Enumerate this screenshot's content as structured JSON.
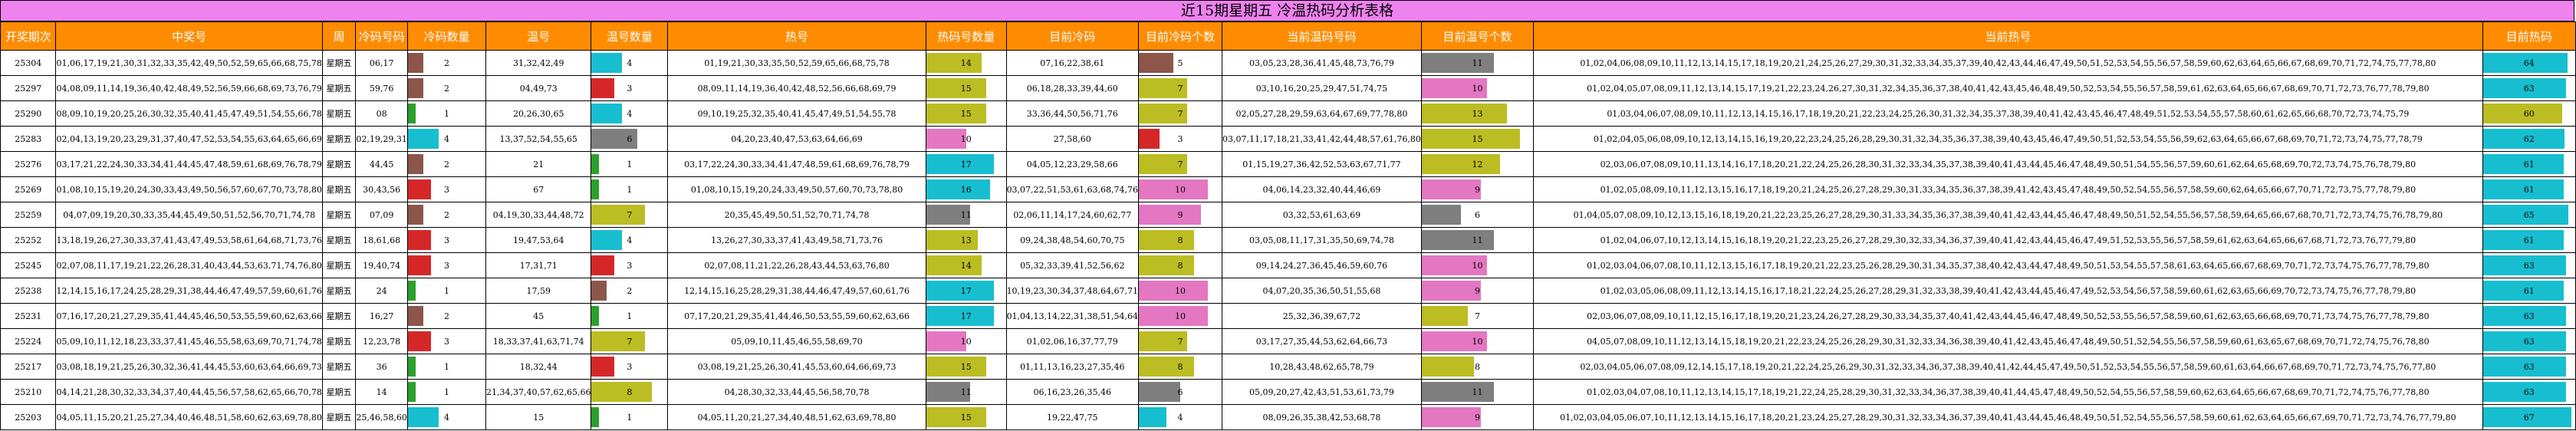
{
  "title": "近15期星期五 冷温热码分析表格",
  "headers": [
    "开奖期次",
    "中奖号",
    "周",
    "冷码号码",
    "冷码数量",
    "温号",
    "温号数量",
    "热号",
    "热码号数量",
    "目前冷码",
    "目前冷码个数",
    "当前温码号码",
    "目前温号个数",
    "当前热号",
    "目前热码"
  ],
  "rows": [
    {
      "qi": "25304",
      "zhong": "01,06,17,19,21,30,31,32,33,35,42,49,50,52,59,65,66,68,75,78",
      "zhou": "星期五",
      "leng": "06,17",
      "lengN": 2,
      "wen": "31,32,42,49",
      "wenN": 4,
      "re": "01,19,21,30,33,35,50,52,59,65,66,68,75,78",
      "reN": 14,
      "mqLeng": "07,16,22,38,61",
      "mqLengN": 5,
      "dqWen": "03,05,23,28,36,41,45,48,73,76,79",
      "mqWenN": 11,
      "dqRe": "01,02,04,06,08,09,10,11,12,13,14,15,17,18,19,20,21,24,25,26,27,29,30,31,32,33,34,35,37,39,40,42,43,44,46,47,49,50,51,52,53,54,55,56,57,58,59,60,62,63,64,65,66,67,68,69,70,71,72,74,75,77,78,80",
      "mqReN": 64
    },
    {
      "qi": "25297",
      "zhong": "04,08,09,11,14,19,36,40,42,48,49,52,56,59,66,68,69,73,76,79",
      "zhou": "星期五",
      "leng": "59,76",
      "lengN": 2,
      "wen": "04,49,73",
      "wenN": 3,
      "re": "08,09,11,14,19,36,40,42,48,52,56,66,68,69,79",
      "reN": 15,
      "mqLeng": "06,18,28,33,39,44,60",
      "mqLengN": 7,
      "dqWen": "03,10,16,20,25,29,47,51,74,75",
      "mqWenN": 10,
      "dqRe": "01,02,04,05,07,08,09,11,12,13,14,15,17,19,21,22,23,24,26,27,30,31,32,34,35,36,37,38,40,41,42,43,45,46,48,49,50,52,53,54,55,56,57,58,59,61,62,63,64,65,66,67,68,69,70,71,72,73,76,77,78,79,80",
      "mqReN": 63
    },
    {
      "qi": "25290",
      "zhong": "08,09,10,19,20,25,26,30,32,35,40,41,45,47,49,51,54,55,66,78",
      "zhou": "星期五",
      "leng": "08",
      "lengN": 1,
      "wen": "20,26,30,65",
      "wenN": 4,
      "re": "09,10,19,25,32,35,40,41,45,47,49,51,54,55,78",
      "reN": 15,
      "mqLeng": "33,36,44,50,56,71,76",
      "mqLengN": 7,
      "dqWen": "02,05,27,28,29,59,63,64,67,69,77,78,80",
      "mqWenN": 13,
      "dqRe": "01,03,04,06,07,08,09,10,11,12,13,14,15,16,17,18,19,20,21,22,23,24,25,26,30,31,32,34,35,37,38,39,40,41,42,43,45,46,47,48,49,51,52,53,54,55,57,58,60,61,62,65,66,68,70,72,73,74,75,79",
      "mqReN": 60
    },
    {
      "qi": "25283",
      "zhong": "02,04,13,19,20,23,29,31,37,40,47,52,53,54,55,63,64,65,66,69",
      "zhou": "星期五",
      "leng": "02,19,29,31",
      "lengN": 4,
      "wen": "13,37,52,54,55,65",
      "wenN": 6,
      "re": "04,20,23,40,47,53,63,64,66,69",
      "reN": 10,
      "mqLeng": "27,58,60",
      "mqLengN": 3,
      "dqWen": "03,07,11,17,18,21,33,41,42,44,48,57,61,76,80",
      "mqWenN": 15,
      "dqRe": "01,02,04,05,06,08,09,10,12,13,14,15,16,19,20,22,23,24,25,26,28,29,30,31,32,34,35,36,37,38,39,40,43,45,46,47,49,50,51,52,53,54,55,56,59,62,63,64,65,66,67,68,69,70,71,72,73,74,75,77,78,79",
      "mqReN": 62
    },
    {
      "qi": "25276",
      "zhong": "03,17,21,22,24,30,33,34,41,44,45,47,48,59,61,68,69,76,78,79",
      "zhou": "星期五",
      "leng": "44,45",
      "lengN": 2,
      "wen": "21",
      "wenN": 1,
      "re": "03,17,22,24,30,33,34,41,47,48,59,61,68,69,76,78,79",
      "reN": 17,
      "mqLeng": "04,05,12,23,29,58,66",
      "mqLengN": 7,
      "dqWen": "01,15,19,27,36,42,52,53,63,67,71,77",
      "mqWenN": 12,
      "dqRe": "02,03,06,07,08,09,10,11,13,14,16,17,18,20,21,22,24,25,26,28,30,31,32,33,34,35,37,38,39,40,41,43,44,45,46,47,48,49,50,51,54,55,56,57,59,60,61,62,64,65,68,69,70,72,73,74,75,76,78,79,80",
      "mqReN": 61
    },
    {
      "qi": "25269",
      "zhong": "01,08,10,15,19,20,24,30,33,43,49,50,56,57,60,67,70,73,78,80",
      "zhou": "星期五",
      "leng": "30,43,56",
      "lengN": 3,
      "wen": "67",
      "wenN": 1,
      "re": "01,08,10,15,19,20,24,33,49,50,57,60,70,73,78,80",
      "reN": 16,
      "mqLeng": "03,07,22,51,53,61,63,68,74,76",
      "mqLengN": 10,
      "dqWen": "04,06,14,23,32,40,44,46,69",
      "mqWenN": 9,
      "dqRe": "01,02,05,08,09,10,11,12,13,15,16,17,18,19,20,21,24,25,26,27,28,29,30,31,33,34,35,36,37,38,39,41,42,43,45,47,48,49,50,52,54,55,56,57,58,59,60,62,64,65,66,67,70,71,72,73,75,77,78,79,80",
      "mqReN": 61
    },
    {
      "qi": "25259",
      "zhong": "04,07,09,19,20,30,33,35,44,45,49,50,51,52,56,70,71,74,78",
      "zhou": "星期五",
      "leng": "07,09",
      "lengN": 2,
      "wen": "04,19,30,33,44,48,72",
      "wenN": 7,
      "re": "20,35,45,49,50,51,52,70,71,74,78",
      "reN": 11,
      "mqLeng": "02,06,11,14,17,24,60,62,77",
      "mqLengN": 9,
      "dqWen": "03,32,53,61,63,69",
      "mqWenN": 6,
      "dqRe": "01,04,05,07,08,09,10,12,13,15,16,18,19,20,21,22,23,25,26,27,28,29,30,31,33,34,35,36,37,38,39,40,41,42,43,44,45,46,47,48,49,50,51,52,54,55,56,57,58,59,64,65,66,67,68,70,71,72,73,74,75,76,78,79,80",
      "mqReN": 65
    },
    {
      "qi": "25252",
      "zhong": "13,18,19,26,27,30,33,37,41,43,47,49,53,58,61,64,68,71,73,76",
      "zhou": "星期五",
      "leng": "18,61,68",
      "lengN": 3,
      "wen": "19,47,53,64",
      "wenN": 4,
      "re": "13,26,27,30,33,37,41,43,49,58,71,73,76",
      "reN": 13,
      "mqLeng": "09,24,38,48,54,60,70,75",
      "mqLengN": 8,
      "dqWen": "03,05,08,11,17,31,35,50,69,74,78",
      "mqWenN": 11,
      "dqRe": "01,02,04,06,07,10,12,13,14,15,16,18,19,20,21,22,23,25,26,27,28,29,30,32,33,34,36,37,39,40,41,42,43,44,45,46,47,49,51,52,53,55,56,57,58,59,61,62,63,64,65,66,67,68,71,72,73,76,77,79,80",
      "mqReN": 61
    },
    {
      "qi": "25245",
      "zhong": "02,07,08,11,17,19,21,22,26,28,31,40,43,44,53,63,71,74,76,80",
      "zhou": "星期五",
      "leng": "19,40,74",
      "lengN": 3,
      "wen": "17,31,71",
      "wenN": 3,
      "re": "02,07,08,11,21,22,26,28,43,44,53,63,76,80",
      "reN": 14,
      "mqLeng": "05,32,33,39,41,52,56,62",
      "mqLengN": 8,
      "dqWen": "09,14,24,27,36,45,46,59,60,76",
      "mqWenN": 10,
      "dqRe": "01,02,03,04,06,07,08,10,11,12,13,15,16,17,18,19,20,21,22,23,25,26,28,29,30,31,34,35,37,38,40,42,43,44,47,48,49,50,51,53,54,55,57,58,61,63,64,65,66,67,68,69,70,71,72,73,74,75,76,77,78,79,80",
      "mqReN": 63
    },
    {
      "qi": "25238",
      "zhong": "12,14,15,16,17,24,25,28,29,31,38,44,46,47,49,57,59,60,61,76",
      "zhou": "星期五",
      "leng": "24",
      "lengN": 1,
      "wen": "17,59",
      "wenN": 2,
      "re": "12,14,15,16,25,28,29,31,38,44,46,47,49,57,60,61,76",
      "reN": 17,
      "mqLeng": "10,19,23,30,34,37,48,64,67,71",
      "mqLengN": 10,
      "dqWen": "04,07,20,35,36,50,51,55,68",
      "mqWenN": 9,
      "dqRe": "01,02,03,05,06,08,09,11,12,13,14,15,16,17,18,21,22,24,25,26,27,28,29,31,32,33,38,39,40,41,42,43,44,45,46,47,49,52,53,54,56,57,58,59,60,61,62,63,65,66,69,70,72,73,74,75,76,77,78,79,80",
      "mqReN": 61
    },
    {
      "qi": "25231",
      "zhong": "07,16,17,20,21,27,29,35,41,44,45,46,50,53,55,59,60,62,63,66",
      "zhou": "星期五",
      "leng": "16,27",
      "lengN": 2,
      "wen": "45",
      "wenN": 1,
      "re": "07,17,20,21,29,35,41,44,46,50,53,55,59,60,62,63,66",
      "reN": 17,
      "mqLeng": "01,04,13,14,22,31,38,51,54,64",
      "mqLengN": 10,
      "dqWen": "25,32,36,39,67,72",
      "mqWenN": 7,
      "dqRe": "02,03,06,07,08,09,10,11,12,15,16,17,18,19,20,21,23,24,26,27,28,29,30,33,34,35,37,40,41,42,43,44,45,46,47,48,49,50,52,53,55,56,57,58,59,60,61,62,63,65,66,68,69,70,71,73,74,75,76,77,78,79,80",
      "mqReN": 63
    },
    {
      "qi": "25224",
      "zhong": "05,09,10,11,12,18,23,33,37,41,45,46,55,58,63,69,70,71,74,78",
      "zhou": "星期五",
      "leng": "12,23,78",
      "lengN": 3,
      "wen": "18,33,37,41,63,71,74",
      "wenN": 7,
      "re": "05,09,10,11,45,46,55,58,69,70",
      "reN": 10,
      "mqLeng": "01,02,06,16,37,77,79",
      "mqLengN": 7,
      "dqWen": "03,17,27,35,44,53,62,64,66,73",
      "mqWenN": 10,
      "dqRe": "04,05,07,08,09,10,11,12,13,14,15,18,19,20,21,22,23,24,25,26,28,29,30,31,32,33,34,36,38,39,40,41,42,43,45,46,47,48,49,50,51,52,54,55,56,57,58,59,60,61,63,65,67,68,69,70,71,72,74,75,76,78,80",
      "mqReN": 63
    },
    {
      "qi": "25217",
      "zhong": "03,08,18,19,21,25,26,30,32,36,41,44,45,53,60,63,64,66,69,73",
      "zhou": "星期五",
      "leng": "36",
      "lengN": 1,
      "wen": "18,32,44",
      "wenN": 3,
      "re": "03,08,19,21,25,26,30,41,45,53,60,64,66,69,73",
      "reN": 15,
      "mqLeng": "01,11,13,16,23,27,35,46",
      "mqLengN": 8,
      "dqWen": "10,28,43,48,62,65,78,79",
      "mqWenN": 8,
      "dqRe": "02,03,04,05,06,07,08,09,12,14,15,17,18,19,20,21,22,24,25,26,29,30,31,32,33,34,36,37,38,39,40,41,42,44,45,47,49,50,51,52,53,54,55,56,57,58,59,60,61,63,64,66,67,68,69,70,71,72,73,74,75,76,77,80",
      "mqReN": 63
    },
    {
      "qi": "25210",
      "zhong": "04,14,21,28,30,32,33,34,37,40,44,45,56,57,58,62,65,66,70,78",
      "zhou": "星期五",
      "leng": "14",
      "lengN": 1,
      "wen": "21,34,37,40,57,62,65,66",
      "wenN": 8,
      "re": "04,28,30,32,33,44,45,56,58,70,78",
      "reN": 11,
      "mqLeng": "06,16,23,26,35,46",
      "mqLengN": 6,
      "dqWen": "05,09,20,27,42,43,51,53,61,73,79",
      "mqWenN": 11,
      "dqRe": "01,02,03,04,07,08,10,11,12,13,14,15,17,18,19,21,22,24,25,28,29,30,31,32,33,34,36,37,38,39,40,41,44,45,47,48,49,50,52,54,55,56,57,58,59,60,62,63,64,65,66,67,68,69,70,71,72,74,75,76,77,78,80",
      "mqReN": 63
    },
    {
      "qi": "25203",
      "zhong": "04,05,11,15,20,21,25,27,34,40,46,48,51,58,60,62,63,69,78,80",
      "zhou": "星期五",
      "leng": "25,46,58,60",
      "lengN": 4,
      "wen": "15",
      "wenN": 1,
      "re": "04,05,11,20,21,27,34,40,48,51,62,63,69,78,80",
      "reN": 15,
      "mqLeng": "19,22,47,75",
      "mqLengN": 4,
      "dqWen": "08,09,26,35,38,42,53,68,78",
      "mqWenN": 9,
      "dqRe": "01,02,03,04,05,06,07,10,11,12,13,14,15,16,17,18,20,21,23,24,25,27,28,29,30,31,32,33,34,36,37,39,40,41,43,44,45,46,48,49,50,51,52,54,55,56,57,58,59,60,61,62,63,64,65,66,67,69,70,71,72,73,74,76,77,79,80",
      "mqReN": 67
    }
  ]
}
